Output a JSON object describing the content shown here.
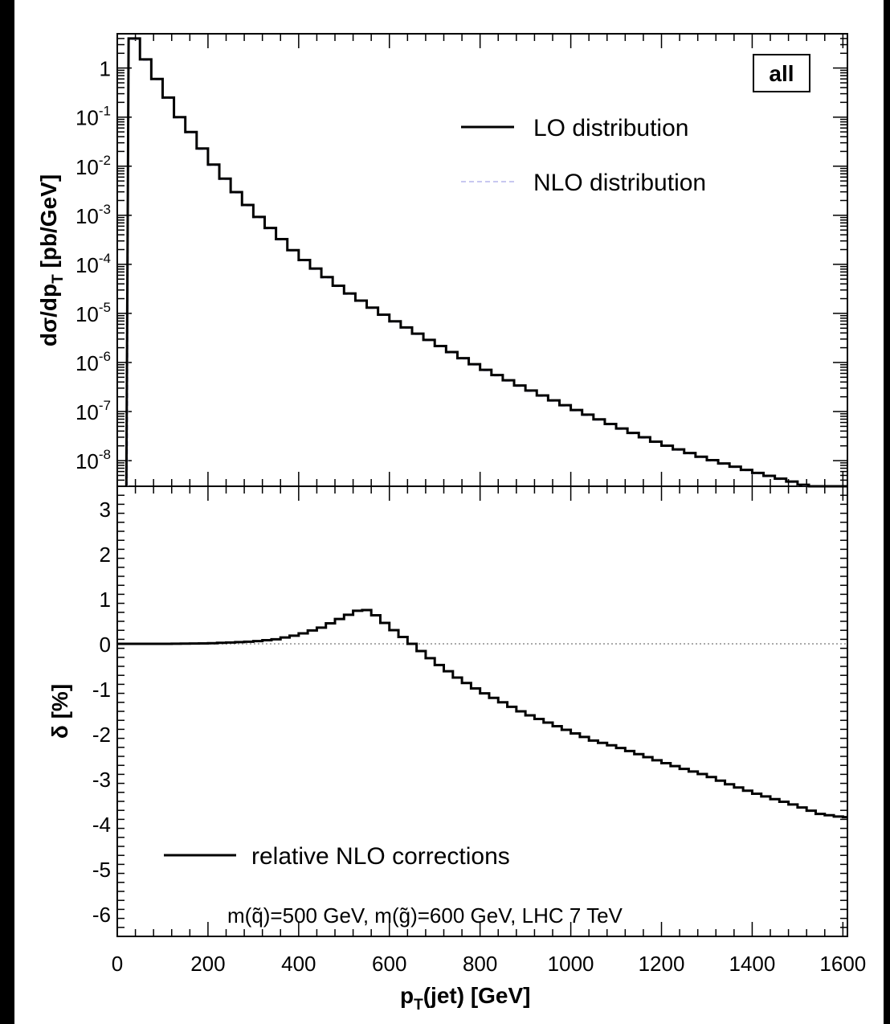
{
  "chart_data": [
    {
      "type": "line",
      "panel": "top",
      "ylabel": "dσ/dp_T [pb/GeV]",
      "yscale": "log",
      "ylim": [
        3e-09,
        5
      ],
      "yticks": [
        {
          "value": 1,
          "mantissa": "1",
          "exp": ""
        },
        {
          "value": 0.1,
          "mantissa": "10",
          "exp": "-1"
        },
        {
          "value": 0.01,
          "mantissa": "10",
          "exp": "-2"
        },
        {
          "value": 0.001,
          "mantissa": "10",
          "exp": "-3"
        },
        {
          "value": 0.0001,
          "mantissa": "10",
          "exp": "-4"
        },
        {
          "value": 1e-05,
          "mantissa": "10",
          "exp": "-5"
        },
        {
          "value": 1e-06,
          "mantissa": "10",
          "exp": "-6"
        },
        {
          "value": 1e-07,
          "mantissa": "10",
          "exp": "-7"
        },
        {
          "value": 1e-08,
          "mantissa": "10",
          "exp": "-8"
        }
      ],
      "tag": "all",
      "legend_position": "top-right",
      "series": [
        {
          "name": "LO distribution",
          "style": "solid",
          "color": "#000000"
        },
        {
          "name": "NLO distribution",
          "style": "dashed",
          "color": "#c8c8f0"
        }
      ],
      "bin_width": 25,
      "x_start": 0,
      "lo_bins": [
        {
          "x": 12.5,
          "y": 1e-10
        },
        {
          "x": 37.5,
          "y": 4.0
        },
        {
          "x": 62.5,
          "y": 1.5
        },
        {
          "x": 87.5,
          "y": 0.6
        },
        {
          "x": 112.5,
          "y": 0.25
        },
        {
          "x": 137.5,
          "y": 0.1
        },
        {
          "x": 175,
          "y": 0.035
        },
        {
          "x": 200,
          "y": 0.015
        },
        {
          "x": 250,
          "y": 0.004
        },
        {
          "x": 300,
          "y": 0.0012
        },
        {
          "x": 400,
          "y": 0.00015
        },
        {
          "x": 500,
          "y": 3e-05
        },
        {
          "x": 600,
          "y": 8e-06
        },
        {
          "x": 700,
          "y": 2.5e-06
        },
        {
          "x": 800,
          "y": 8e-07
        },
        {
          "x": 900,
          "y": 3e-07
        },
        {
          "x": 1000,
          "y": 1.2e-07
        },
        {
          "x": 1100,
          "y": 5e-08
        },
        {
          "x": 1200,
          "y": 2.2e-08
        },
        {
          "x": 1300,
          "y": 1.1e-08
        },
        {
          "x": 1400,
          "y": 6e-09
        },
        {
          "x": 1500,
          "y": 3.5e-09
        },
        {
          "x": 1600,
          "y": 1.8e-09
        }
      ]
    },
    {
      "type": "line",
      "panel": "bottom",
      "ylabel": "δ [%]",
      "xlabel": "p_T(jet) [GeV]",
      "xlim": [
        0,
        1610
      ],
      "xticks": [
        0,
        200,
        400,
        600,
        800,
        1000,
        1200,
        1400,
        1600
      ],
      "ylim": [
        -6.5,
        3.5
      ],
      "yticks": [
        3,
        2,
        1,
        0,
        -1,
        -2,
        -3,
        -4,
        -5,
        -6
      ],
      "series": [
        {
          "name": "relative NLO corrections",
          "style": "solid",
          "color": "#000000"
        }
      ],
      "bin_width": 20,
      "points": [
        {
          "x": 0,
          "y": 0.0
        },
        {
          "x": 100,
          "y": 0.0
        },
        {
          "x": 200,
          "y": 0.01
        },
        {
          "x": 300,
          "y": 0.05
        },
        {
          "x": 350,
          "y": 0.1
        },
        {
          "x": 400,
          "y": 0.2
        },
        {
          "x": 450,
          "y": 0.36
        },
        {
          "x": 500,
          "y": 0.6
        },
        {
          "x": 540,
          "y": 0.78
        },
        {
          "x": 560,
          "y": 0.72
        },
        {
          "x": 600,
          "y": 0.38
        },
        {
          "x": 650,
          "y": 0.0
        },
        {
          "x": 700,
          "y": -0.4
        },
        {
          "x": 750,
          "y": -0.75
        },
        {
          "x": 800,
          "y": -1.05
        },
        {
          "x": 850,
          "y": -1.3
        },
        {
          "x": 900,
          "y": -1.55
        },
        {
          "x": 950,
          "y": -1.75
        },
        {
          "x": 1000,
          "y": -1.95
        },
        {
          "x": 1050,
          "y": -2.15
        },
        {
          "x": 1100,
          "y": -2.28
        },
        {
          "x": 1150,
          "y": -2.45
        },
        {
          "x": 1200,
          "y": -2.62
        },
        {
          "x": 1250,
          "y": -2.78
        },
        {
          "x": 1300,
          "y": -2.92
        },
        {
          "x": 1350,
          "y": -3.12
        },
        {
          "x": 1400,
          "y": -3.3
        },
        {
          "x": 1450,
          "y": -3.45
        },
        {
          "x": 1500,
          "y": -3.6
        },
        {
          "x": 1550,
          "y": -3.78
        },
        {
          "x": 1600,
          "y": -3.85
        }
      ],
      "annotation": "m(q̃)=500 GeV, m(g̃)=600 GeV, LHC 7 TeV"
    }
  ]
}
